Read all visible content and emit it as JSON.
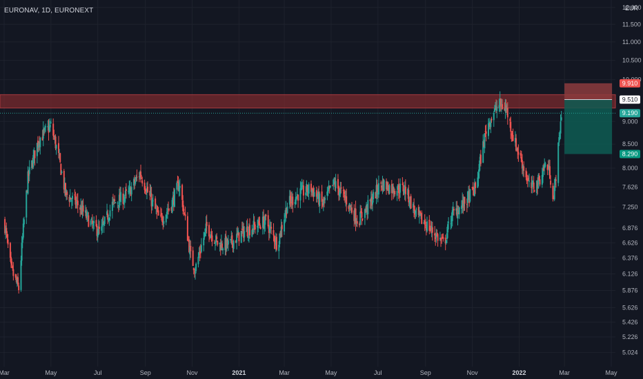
{
  "header": {
    "symbol_label": "EURONAV, 1D, EURONEXT",
    "currency": "EUR"
  },
  "colors": {
    "background": "#131722",
    "grid": "#1e222d",
    "up": "#26a69a",
    "down": "#ef5350",
    "resistance_zone": "#7a2a2e",
    "stop_zone": "#8c3b3d",
    "target_zone": "#0e5c52",
    "stop_tag": "#ef5350",
    "entry_tag": "#ffffff",
    "current_tag": "#26a69a",
    "target_tag": "#089981"
  },
  "chart_data": {
    "type": "candlestick",
    "y_scale": "log",
    "ylim": [
      4.9,
      12.1
    ],
    "y_ticks": [
      "12.000",
      "11.500",
      "11.000",
      "10.500",
      "10.000",
      "9.000",
      "8.500",
      "8.000",
      "7.626",
      "7.250",
      "6.876",
      "6.626",
      "6.376",
      "6.126",
      "5.876",
      "5.626",
      "5.426",
      "5.226",
      "5.024"
    ],
    "x_ticks": [
      {
        "label": "Mar",
        "date": "2020-03-01"
      },
      {
        "label": "May",
        "date": "2020-05-01"
      },
      {
        "label": "Jul",
        "date": "2020-07-01"
      },
      {
        "label": "Sep",
        "date": "2020-09-01"
      },
      {
        "label": "Nov",
        "date": "2020-11-01"
      },
      {
        "label": "2021",
        "date": "2021-01-01",
        "bold": true
      },
      {
        "label": "Mar",
        "date": "2021-03-01"
      },
      {
        "label": "May",
        "date": "2021-05-01"
      },
      {
        "label": "Jul",
        "date": "2021-07-01"
      },
      {
        "label": "Sep",
        "date": "2021-09-01"
      },
      {
        "label": "Nov",
        "date": "2021-11-01"
      },
      {
        "label": "2022",
        "date": "2022-01-01",
        "bold": true
      },
      {
        "label": "Mar",
        "date": "2022-03-01"
      },
      {
        "label": "May",
        "date": "2022-05-01"
      }
    ],
    "x_range": [
      "2020-03-01",
      "2022-05-01"
    ],
    "anchors": [
      [
        "2020-03-01",
        7.0
      ],
      [
        "2020-03-10",
        6.2
      ],
      [
        "2020-03-20",
        5.9
      ],
      [
        "2020-04-01",
        7.8
      ],
      [
        "2020-04-15",
        8.6
      ],
      [
        "2020-05-01",
        8.9
      ],
      [
        "2020-05-10",
        8.3
      ],
      [
        "2020-05-20",
        7.5
      ],
      [
        "2020-06-05",
        7.3
      ],
      [
        "2020-06-25",
        6.9
      ],
      [
        "2020-07-05",
        6.8
      ],
      [
        "2020-07-20",
        7.3
      ],
      [
        "2020-08-10",
        7.5
      ],
      [
        "2020-08-25",
        7.9
      ],
      [
        "2020-09-05",
        7.5
      ],
      [
        "2020-09-20",
        7.0
      ],
      [
        "2020-10-05",
        7.3
      ],
      [
        "2020-10-15",
        7.7
      ],
      [
        "2020-10-30",
        6.4
      ],
      [
        "2020-11-05",
        6.2
      ],
      [
        "2020-11-20",
        6.9
      ],
      [
        "2020-12-05",
        6.6
      ],
      [
        "2020-12-20",
        6.6
      ],
      [
        "2021-01-05",
        6.8
      ],
      [
        "2021-01-20",
        6.9
      ],
      [
        "2021-02-05",
        7.0
      ],
      [
        "2021-02-20",
        6.6
      ],
      [
        "2021-03-05",
        7.3
      ],
      [
        "2021-03-20",
        7.5
      ],
      [
        "2021-04-05",
        7.6
      ],
      [
        "2021-04-20",
        7.3
      ],
      [
        "2021-05-05",
        7.7
      ],
      [
        "2021-05-20",
        7.4
      ],
      [
        "2021-06-05",
        7.0
      ],
      [
        "2021-06-20",
        7.3
      ],
      [
        "2021-07-05",
        7.7
      ],
      [
        "2021-07-20",
        7.6
      ],
      [
        "2021-08-05",
        7.6
      ],
      [
        "2021-08-20",
        7.1
      ],
      [
        "2021-09-05",
        6.9
      ],
      [
        "2021-09-25",
        6.6
      ],
      [
        "2021-10-05",
        7.1
      ],
      [
        "2021-10-20",
        7.3
      ],
      [
        "2021-11-05",
        7.6
      ],
      [
        "2021-11-20",
        8.9
      ],
      [
        "2021-12-05",
        9.4
      ],
      [
        "2021-12-15",
        9.3
      ],
      [
        "2021-12-25",
        8.6
      ],
      [
        "2022-01-05",
        8.1
      ],
      [
        "2022-01-15",
        7.6
      ],
      [
        "2022-01-25",
        7.7
      ],
      [
        "2022-02-05",
        8.1
      ],
      [
        "2022-02-10",
        7.9
      ],
      [
        "2022-02-15",
        7.4
      ],
      [
        "2022-02-20",
        8.2
      ],
      [
        "2022-02-25",
        9.19
      ]
    ],
    "resistance_zone": {
      "low": 9.31,
      "high": 9.63
    },
    "position": {
      "type": "short",
      "start": "2022-03-01",
      "end": "2022-05-02",
      "stop": 9.91,
      "entry": 9.51,
      "target": 8.29
    },
    "price_tags": [
      {
        "key": "stop",
        "label": "9.910",
        "value": 9.91
      },
      {
        "key": "entry",
        "label": "9.510",
        "value": 9.51
      },
      {
        "key": "current",
        "label": "9.190",
        "value": 9.19
      },
      {
        "key": "target",
        "label": "8.290",
        "value": 8.29
      }
    ]
  }
}
